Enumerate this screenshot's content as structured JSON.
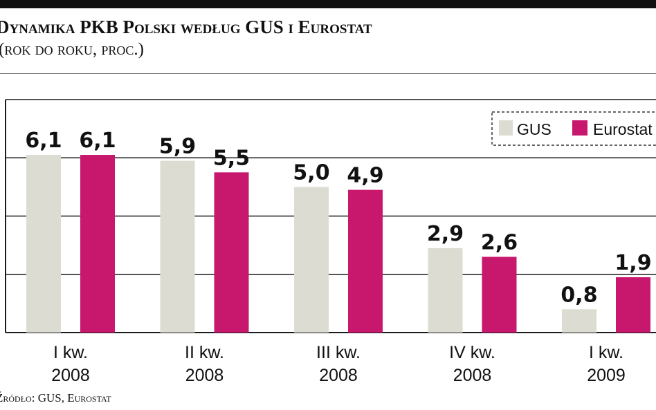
{
  "header": {
    "title": "Dynamika PKB Polski według GUS i Eurostat",
    "subtitle": "(rok do roku, proc.)"
  },
  "footer": {
    "source": "Źródło: GUS, Eurostat"
  },
  "colors": {
    "gus": "#dcdcd2",
    "eurostat": "#c8186e",
    "grid": "#1a1a1a"
  },
  "chart_data": {
    "type": "bar",
    "title": "Dynamika PKB Polski według GUS i Eurostat",
    "subtitle": "(rok do roku, proc.)",
    "categories": [
      [
        "I kw.",
        "2008"
      ],
      [
        "II kw.",
        "2008"
      ],
      [
        "III kw.",
        "2008"
      ],
      [
        "IV kw.",
        "2008"
      ],
      [
        "I kw.",
        "2009"
      ]
    ],
    "series": [
      {
        "name": "GUS",
        "values": [
          6.1,
          5.9,
          5.0,
          2.9,
          0.8
        ],
        "labels": [
          "6,1",
          "5,9",
          "5,0",
          "2,9",
          "0,8"
        ]
      },
      {
        "name": "Eurostat",
        "values": [
          6.1,
          5.5,
          4.9,
          2.6,
          1.9
        ],
        "labels": [
          "6,1",
          "5,5",
          "4,9",
          "2,6",
          "1,9"
        ]
      }
    ],
    "ylim": [
      0,
      8
    ],
    "yticks": [
      0,
      2,
      4,
      6,
      8
    ],
    "grid": true,
    "legend": "top-right",
    "xlabel": "",
    "ylabel": ""
  }
}
